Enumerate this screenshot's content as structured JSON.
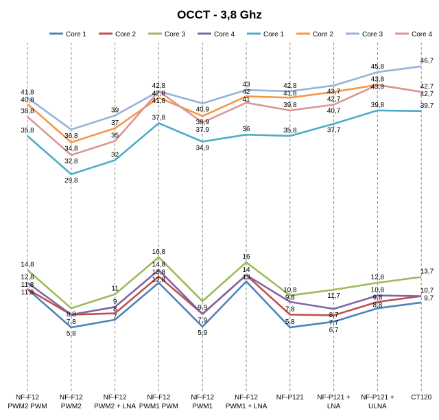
{
  "chart_data": {
    "type": "line",
    "title": "OCCT - 3,8 Ghz",
    "categories": [
      [
        "NF-F12",
        "PWM2 PWM"
      ],
      [
        "NF-F12",
        "PWM2"
      ],
      [
        "NF-F12",
        "PWM2 + LNA"
      ],
      [
        "NF-F12",
        "PWM1 PWM"
      ],
      [
        "NF-F12",
        "PWM1"
      ],
      [
        "NF-F12",
        "PWM1 + LNA"
      ],
      [
        "NF-P121"
      ],
      [
        "NF-P121 +",
        "LNA"
      ],
      [
        "NF-P121 +",
        "ULNA"
      ],
      [
        "CT120"
      ]
    ],
    "ylim": [
      0,
      50
    ],
    "grid": "vertical dashed",
    "legend_position": "top",
    "series": [
      {
        "name": "Core 1",
        "color": "#4F81BD",
        "values": [
          11.8,
          5.8,
          7,
          12.8,
          5.9,
          13,
          5.8,
          6.7,
          8.8,
          9.7
        ]
      },
      {
        "name": "Core 2",
        "color": "#C0504D",
        "values": [
          11.8,
          7.8,
          8,
          13.8,
          7.9,
          14,
          7.8,
          7.7,
          9.8,
          10.7
        ]
      },
      {
        "name": "Core 3",
        "color": "#9BBB59",
        "values": [
          14.8,
          8.8,
          11,
          16.8,
          9.9,
          16,
          10.8,
          11.7,
          12.8,
          13.7
        ]
      },
      {
        "name": "Core 4",
        "color": "#8064A2",
        "values": [
          12.8,
          7.8,
          9,
          14.8,
          7.9,
          14,
          9.8,
          8.7,
          10.8,
          10.7
        ]
      },
      {
        "name": "Core 1",
        "color": "#4BACC6",
        "values": [
          35.8,
          29.8,
          32,
          37.8,
          34.9,
          36,
          35.8,
          37.7,
          39.8,
          39.7
        ]
      },
      {
        "name": "Core 2",
        "color": "#F79646",
        "values": [
          40.8,
          34.8,
          37,
          41.8,
          38.9,
          42,
          41.8,
          42.7,
          43.8,
          42.7
        ]
      },
      {
        "name": "Core 3",
        "color": "#95B3D7",
        "values": [
          41.8,
          36.8,
          39,
          42.8,
          40.9,
          43,
          42.8,
          43.7,
          45.8,
          46.7
        ]
      },
      {
        "name": "Core 4",
        "color": "#DA9694",
        "values": [
          38.8,
          32.8,
          35,
          42.8,
          37.9,
          41,
          39.8,
          40.7,
          43.8,
          42.7
        ]
      }
    ],
    "data_labels": [
      {
        "text": "14,8",
        "series": 2,
        "point": 0
      },
      {
        "text": "12,8",
        "series": 3,
        "point": 0
      },
      {
        "text": "11,8",
        "series": 1,
        "point": 0
      },
      {
        "text": "11,8",
        "series": 0,
        "point": 0
      },
      {
        "text": "8,8",
        "series": 2,
        "point": 1
      },
      {
        "text": "7,8",
        "series": 1,
        "point": 1
      },
      {
        "text": "5,8",
        "series": 0,
        "point": 1
      },
      {
        "text": "11",
        "series": 2,
        "point": 2
      },
      {
        "text": "9",
        "series": 3,
        "point": 2
      },
      {
        "text": "8",
        "series": 1,
        "point": 2
      },
      {
        "text": "7",
        "series": 0,
        "point": 2
      },
      {
        "text": "16,8",
        "series": 2,
        "point": 3
      },
      {
        "text": "14,8",
        "series": 3,
        "point": 3
      },
      {
        "text": "13,8",
        "series": 1,
        "point": 3
      },
      {
        "text": "12,8",
        "series": 0,
        "point": 3
      },
      {
        "text": "9,9",
        "series": 2,
        "point": 4
      },
      {
        "text": "7,9",
        "series": 1,
        "point": 4
      },
      {
        "text": "5,9",
        "series": 0,
        "point": 4
      },
      {
        "text": "16",
        "series": 2,
        "point": 5
      },
      {
        "text": "14",
        "series": 1,
        "point": 5
      },
      {
        "text": "13",
        "series": 0,
        "point": 5
      },
      {
        "text": "10,8",
        "series": 2,
        "point": 6
      },
      {
        "text": "9,8",
        "series": 3,
        "point": 6
      },
      {
        "text": "7,8",
        "series": 1,
        "point": 6
      },
      {
        "text": "5,8",
        "series": 0,
        "point": 6
      },
      {
        "text": "11,7",
        "series": 2,
        "point": 7
      },
      {
        "text": "8,7",
        "series": 3,
        "point": 7
      },
      {
        "text": "7,7",
        "series": 1,
        "point": 7
      },
      {
        "text": "6,7",
        "series": 0,
        "point": 7
      },
      {
        "text": "12,8",
        "series": 2,
        "point": 8
      },
      {
        "text": "10,8",
        "series": 3,
        "point": 8
      },
      {
        "text": "9,8",
        "series": 1,
        "point": 8
      },
      {
        "text": "8,8",
        "series": 0,
        "point": 8
      },
      {
        "text": "13,7",
        "series": 2,
        "point": 9
      },
      {
        "text": "10,7",
        "series": 1,
        "point": 9
      },
      {
        "text": "9,7",
        "series": 0,
        "point": 9
      },
      {
        "text": "41,8",
        "series": 6,
        "point": 0
      },
      {
        "text": "40,8",
        "series": 5,
        "point": 0
      },
      {
        "text": "38,8",
        "series": 7,
        "point": 0
      },
      {
        "text": "35,8",
        "series": 4,
        "point": 0
      },
      {
        "text": "36,8",
        "series": 6,
        "point": 1
      },
      {
        "text": "34,8",
        "series": 5,
        "point": 1
      },
      {
        "text": "32,8",
        "series": 7,
        "point": 1
      },
      {
        "text": "29,8",
        "series": 4,
        "point": 1
      },
      {
        "text": "39",
        "series": 6,
        "point": 2
      },
      {
        "text": "37",
        "series": 5,
        "point": 2
      },
      {
        "text": "35",
        "series": 7,
        "point": 2
      },
      {
        "text": "32",
        "series": 4,
        "point": 2
      },
      {
        "text": "42,8",
        "series": 6,
        "point": 3
      },
      {
        "text": "42,8",
        "series": 7,
        "point": 3
      },
      {
        "text": "41,8",
        "series": 5,
        "point": 3
      },
      {
        "text": "37,8",
        "series": 4,
        "point": 3
      },
      {
        "text": "40,9",
        "series": 6,
        "point": 4
      },
      {
        "text": "38,9",
        "series": 5,
        "point": 4
      },
      {
        "text": "37,9",
        "series": 7,
        "point": 4
      },
      {
        "text": "34,9",
        "series": 4,
        "point": 4
      },
      {
        "text": "43",
        "series": 6,
        "point": 5
      },
      {
        "text": "42",
        "series": 5,
        "point": 5
      },
      {
        "text": "41",
        "series": 7,
        "point": 5
      },
      {
        "text": "36",
        "series": 4,
        "point": 5
      },
      {
        "text": "42,8",
        "series": 6,
        "point": 6
      },
      {
        "text": "41,8",
        "series": 5,
        "point": 6
      },
      {
        "text": "39,8",
        "series": 7,
        "point": 6
      },
      {
        "text": "35,8",
        "series": 4,
        "point": 6
      },
      {
        "text": "43,7",
        "series": 6,
        "point": 7
      },
      {
        "text": "42,7",
        "series": 5,
        "point": 7
      },
      {
        "text": "40,7",
        "series": 7,
        "point": 7
      },
      {
        "text": "37,7",
        "series": 4,
        "point": 7
      },
      {
        "text": "45,8",
        "series": 6,
        "point": 8
      },
      {
        "text": "43,8",
        "series": 5,
        "point": 8
      },
      {
        "text": "43,8",
        "series": 7,
        "point": 8
      },
      {
        "text": "39,8",
        "series": 4,
        "point": 8
      },
      {
        "text": "46,7",
        "series": 6,
        "point": 9
      },
      {
        "text": "42,7",
        "series": 7,
        "point": 9
      },
      {
        "text": "42,7",
        "series": 5,
        "point": 9
      },
      {
        "text": "39,7",
        "series": 4,
        "point": 9
      }
    ]
  }
}
